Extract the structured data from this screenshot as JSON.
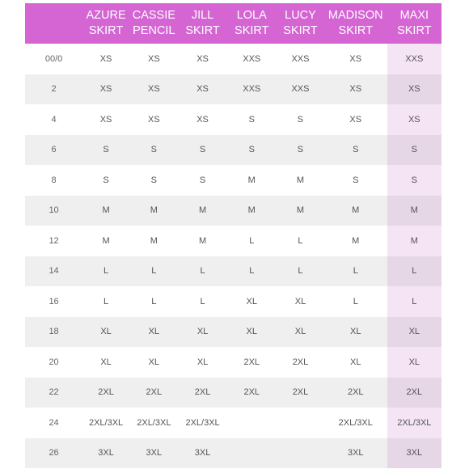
{
  "headers": {
    "size": "",
    "columns": [
      {
        "line1": "AZURE",
        "line2": "SKIRT"
      },
      {
        "line1": "CASSIE",
        "line2": "PENCIL"
      },
      {
        "line1": "JILL",
        "line2": "SKIRT"
      },
      {
        "line1": "LOLA",
        "line2": "SKIRT"
      },
      {
        "line1": "LUCY",
        "line2": "SKIRT"
      },
      {
        "line1": "MADISON",
        "line2": "SKIRT"
      },
      {
        "line1": "MAXI",
        "line2": "SKIRT"
      }
    ]
  },
  "rows": [
    {
      "size": "00/0",
      "cells": [
        "XS",
        "XS",
        "XS",
        "XXS",
        "XXS",
        "XS",
        "XXS"
      ]
    },
    {
      "size": "2",
      "cells": [
        "XS",
        "XS",
        "XS",
        "XXS",
        "XXS",
        "XS",
        "XS"
      ]
    },
    {
      "size": "4",
      "cells": [
        "XS",
        "XS",
        "XS",
        "S",
        "S",
        "XS",
        "XS"
      ]
    },
    {
      "size": "6",
      "cells": [
        "S",
        "S",
        "S",
        "S",
        "S",
        "S",
        "S"
      ]
    },
    {
      "size": "8",
      "cells": [
        "S",
        "S",
        "S",
        "M",
        "M",
        "S",
        "S"
      ]
    },
    {
      "size": "10",
      "cells": [
        "M",
        "M",
        "M",
        "M",
        "M",
        "M",
        "M"
      ]
    },
    {
      "size": "12",
      "cells": [
        "M",
        "M",
        "M",
        "L",
        "L",
        "M",
        "M"
      ]
    },
    {
      "size": "14",
      "cells": [
        "L",
        "L",
        "L",
        "L",
        "L",
        "L",
        "L"
      ]
    },
    {
      "size": "16",
      "cells": [
        "L",
        "L",
        "L",
        "XL",
        "XL",
        "L",
        "L"
      ]
    },
    {
      "size": "18",
      "cells": [
        "XL",
        "XL",
        "XL",
        "XL",
        "XL",
        "XL",
        "XL"
      ]
    },
    {
      "size": "20",
      "cells": [
        "XL",
        "XL",
        "XL",
        "2XL",
        "2XL",
        "XL",
        "XL"
      ]
    },
    {
      "size": "22",
      "cells": [
        "2XL",
        "2XL",
        "2XL",
        "2XL",
        "2XL",
        "2XL",
        "2XL"
      ]
    },
    {
      "size": "24",
      "cells": [
        "2XL/3XL",
        "2XL/3XL",
        "2XL/3XL",
        "",
        "",
        "2XL/3XL",
        "2XL/3XL"
      ]
    },
    {
      "size": "26",
      "cells": [
        "3XL",
        "3XL",
        "3XL",
        "",
        "",
        "3XL",
        "3XL"
      ]
    }
  ],
  "colors": {
    "header_bg": "#d465d3",
    "shaded_row": "#efefef",
    "maxi_column": "#f4e4f4"
  }
}
